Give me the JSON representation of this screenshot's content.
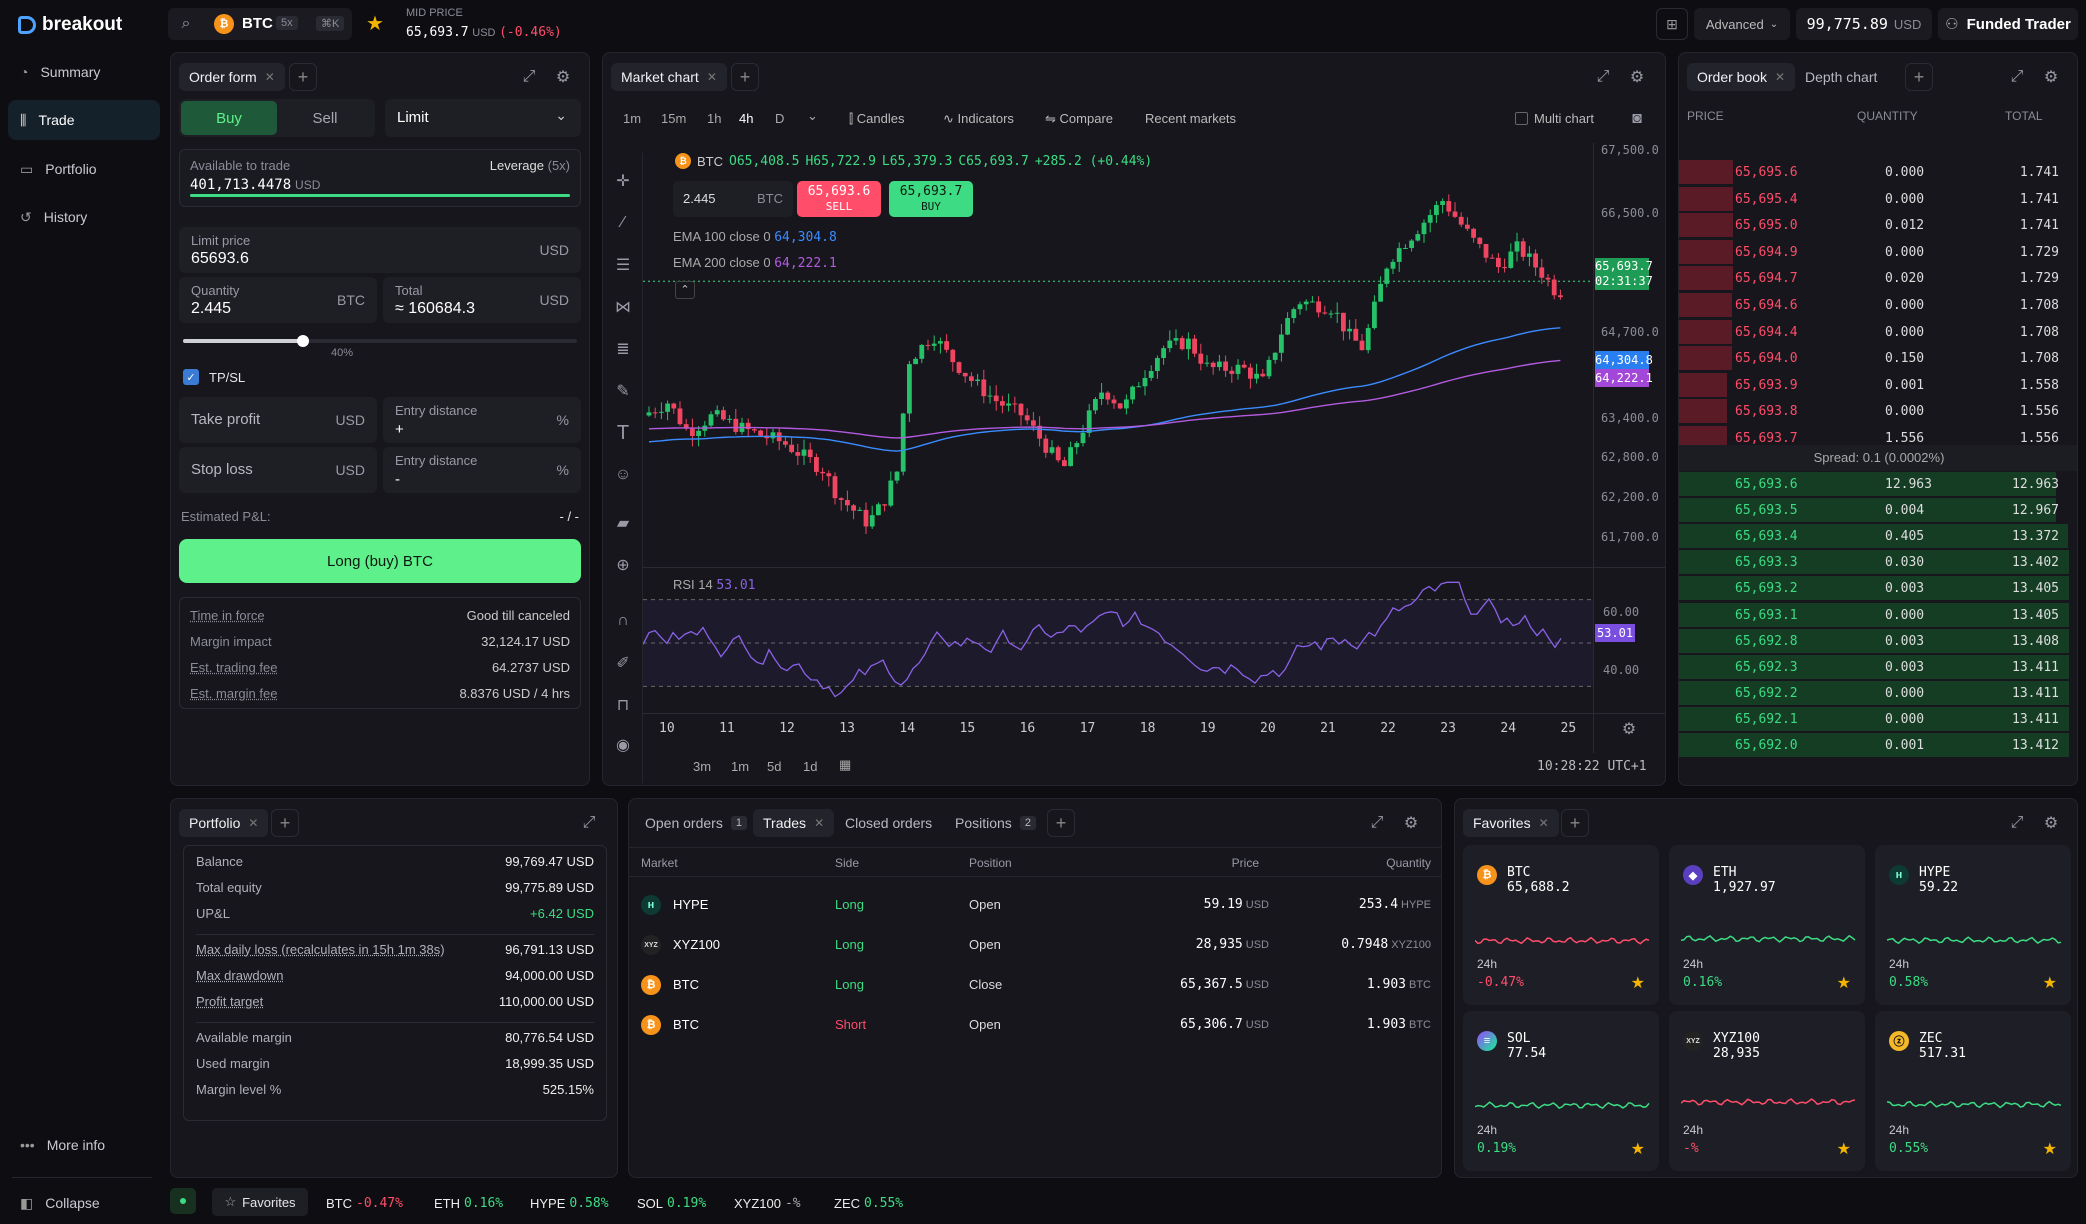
{
  "brand": {
    "name": "breakout"
  },
  "sidebar": {
    "items": [
      {
        "label": "Summary",
        "icon": "chart-pie-icon"
      },
      {
        "label": "Trade",
        "icon": "candles-icon"
      },
      {
        "label": "Portfolio",
        "icon": "wallet-icon"
      },
      {
        "label": "History",
        "icon": "history-icon"
      }
    ],
    "more": "More info",
    "collapse": "Collapse"
  },
  "topbar": {
    "symbol": "BTC",
    "leverage": "5x",
    "shortcut": "⌘K",
    "mid_label": "MID PRICE",
    "mid_price": "65,693.7",
    "mid_unit": "USD",
    "mid_change": "(-0.46%)",
    "mode": "Advanced",
    "balance": "99,775.89",
    "balance_unit": "USD",
    "account": "Funded Trader"
  },
  "order_form": {
    "tab": "Order form",
    "buy": "Buy",
    "sell": "Sell",
    "type": "Limit",
    "available_label": "Available to trade",
    "available_value": "401,713.4478",
    "available_unit": "USD",
    "leverage_label": "Leverage",
    "leverage_value": "(5x)",
    "limit_label": "Limit price",
    "limit_value": "65693.6",
    "usd": "USD",
    "btc": "BTC",
    "qty_label": "Quantity",
    "qty_value": "2.445",
    "total_label": "Total",
    "total_value": "≈ 160684.3",
    "slider_pct": "40%",
    "slider_fraction": 0.4,
    "tpsl": "TP/SL",
    "tp_label": "Take profit",
    "sl_label": "Stop loss",
    "entry_label": "Entry distance",
    "pct": "%",
    "tp_entry": "+",
    "sl_entry": "-",
    "pnl_label": "Estimated P&L:",
    "pnl_value": "- / -",
    "submit": "Long (buy) BTC",
    "details": [
      {
        "k": "Time in force",
        "v": "Good till canceled"
      },
      {
        "k": "Margin impact",
        "v": "32,124.17 USD"
      },
      {
        "k": "Est. trading fee",
        "v": "64.2737 USD"
      },
      {
        "k": "Est. margin fee",
        "v": "8.8376 USD / 4 hrs"
      }
    ]
  },
  "chart": {
    "tab": "Market chart",
    "intervals": [
      "1m",
      "15m",
      "1h",
      "4h",
      "D"
    ],
    "active_interval": "4h",
    "tools": [
      "Candles",
      "Indicators",
      "Compare",
      "Recent markets"
    ],
    "multi": "Multi chart",
    "ohlc_symbol": "BTC",
    "o": "O65,408.5",
    "h": "H65,722.9",
    "l": "L65,379.3",
    "c": "C65,693.7",
    "change": "+285.2 (+0.44%)",
    "qty": "2.445",
    "qty_unit": "BTC",
    "sell_price": "65,693.6",
    "sell_label": "SELL",
    "buy_price": "65,693.7",
    "buy_label": "BUY",
    "ema100_label": "EMA 100 close 0",
    "ema100_value": "64,304.8",
    "ema200_label": "EMA 200 close 0",
    "ema200_value": "64,222.1",
    "rsi_label": "RSI 14",
    "rsi_value": "53.01",
    "price_tag": "65,693.7",
    "price_timer": "02:31:37",
    "y_labels": [
      "67,500.0",
      "66,500.0",
      "64,700.0",
      "63,400.0",
      "62,800.0",
      "62,200.0",
      "61,700.0"
    ],
    "rsi_levels": [
      "60.00",
      "40.00"
    ],
    "x_labels": [
      "10",
      "11",
      "12",
      "13",
      "14",
      "15",
      "16",
      "17",
      "18",
      "19",
      "20",
      "21",
      "22",
      "23",
      "24",
      "25"
    ],
    "ranges": [
      "3m",
      "1m",
      "5d",
      "1d"
    ],
    "clock": "10:28:22 UTC+1"
  },
  "chart_data": {
    "type": "candlestick",
    "title": "BTC",
    "interval": "4h",
    "ylim": [
      61300,
      67600
    ],
    "last_close": 65693.7,
    "ema100": 64304.8,
    "ema200": 64222.1,
    "rsi": 53.01
  },
  "orderbook": {
    "tab": "Order book",
    "tab2": "Depth chart",
    "headers": [
      "PRICE",
      "QUANTITY",
      "TOTAL"
    ],
    "asks": [
      [
        "65,695.6",
        "0.000",
        "1.741"
      ],
      [
        "65,695.4",
        "0.000",
        "1.741"
      ],
      [
        "65,695.0",
        "0.012",
        "1.741"
      ],
      [
        "65,694.9",
        "0.000",
        "1.729"
      ],
      [
        "65,694.7",
        "0.020",
        "1.729"
      ],
      [
        "65,694.6",
        "0.000",
        "1.708"
      ],
      [
        "65,694.4",
        "0.000",
        "1.708"
      ],
      [
        "65,694.0",
        "0.150",
        "1.708"
      ],
      [
        "65,693.9",
        "0.001",
        "1.558"
      ],
      [
        "65,693.8",
        "0.000",
        "1.556"
      ],
      [
        "65,693.7",
        "1.556",
        "1.556"
      ]
    ],
    "spread": "Spread: 0.1 (0.0002%)",
    "bids": [
      [
        "65,693.6",
        "12.963",
        "12.963"
      ],
      [
        "65,693.5",
        "0.004",
        "12.967"
      ],
      [
        "65,693.4",
        "0.405",
        "13.372"
      ],
      [
        "65,693.3",
        "0.030",
        "13.402"
      ],
      [
        "65,693.2",
        "0.003",
        "13.405"
      ],
      [
        "65,693.1",
        "0.000",
        "13.405"
      ],
      [
        "65,692.8",
        "0.003",
        "13.408"
      ],
      [
        "65,692.3",
        "0.003",
        "13.411"
      ],
      [
        "65,692.2",
        "0.000",
        "13.411"
      ],
      [
        "65,692.1",
        "0.000",
        "13.411"
      ],
      [
        "65,692.0",
        "0.001",
        "13.412"
      ]
    ]
  },
  "portfolio": {
    "tab": "Portfolio",
    "rows": [
      {
        "k": "Balance",
        "v": "99,769.47 USD"
      },
      {
        "k": "Total equity",
        "v": "99,775.89 USD"
      },
      {
        "k": "UP&L",
        "v": "+6.42 USD"
      },
      {
        "k": "Max daily loss (recalculates in 15h 1m 38s)",
        "v": "96,791.13 USD"
      },
      {
        "k": "Max drawdown",
        "v": "94,000.00 USD"
      },
      {
        "k": "Profit target",
        "v": "110,000.00 USD"
      },
      {
        "k": "Available margin",
        "v": "80,776.54 USD"
      },
      {
        "k": "Used margin",
        "v": "18,999.35 USD"
      },
      {
        "k": "Margin level %",
        "v": "525.15%"
      }
    ]
  },
  "trades": {
    "tabs": [
      {
        "label": "Open orders",
        "count": "1"
      },
      {
        "label": "Trades"
      },
      {
        "label": "Closed orders"
      },
      {
        "label": "Positions",
        "count": "2"
      }
    ],
    "headers": [
      "Market",
      "Side",
      "Position",
      "Price",
      "Quantity"
    ],
    "rows": [
      {
        "market": "HYPE",
        "side": "Long",
        "position": "Open",
        "price": "59.19",
        "qty": "253.4",
        "qty_unit": "HYPE"
      },
      {
        "market": "XYZ100",
        "side": "Long",
        "position": "Open",
        "price": "28,935",
        "qty": "0.7948",
        "qty_unit": "XYZ100"
      },
      {
        "market": "BTC",
        "side": "Long",
        "position": "Close",
        "price": "65,367.5",
        "qty": "1.903",
        "qty_unit": "BTC"
      },
      {
        "market": "BTC",
        "side": "Short",
        "position": "Open",
        "price": "65,306.7",
        "qty": "1.903",
        "qty_unit": "BTC"
      }
    ],
    "usd": "USD"
  },
  "favorites": {
    "tab": "Favorites",
    "label24": "24h",
    "items": [
      {
        "sym": "BTC",
        "price": "65,688.2",
        "chg": "-0.47%"
      },
      {
        "sym": "ETH",
        "price": "1,927.97",
        "chg": "0.16%"
      },
      {
        "sym": "HYPE",
        "price": "59.22",
        "chg": "0.58%"
      },
      {
        "sym": "SOL",
        "price": "77.54",
        "chg": "0.19%"
      },
      {
        "sym": "XYZ100",
        "price": "28,935",
        "chg": "-%"
      },
      {
        "sym": "ZEC",
        "price": "517.31",
        "chg": "0.55%"
      }
    ]
  },
  "ticker": {
    "label": "Favorites",
    "items": [
      {
        "sym": "BTC",
        "chg": "-0.47%"
      },
      {
        "sym": "ETH",
        "chg": "0.16%"
      },
      {
        "sym": "HYPE",
        "chg": "0.58%"
      },
      {
        "sym": "SOL",
        "chg": "0.19%"
      },
      {
        "sym": "XYZ100",
        "chg": "-%"
      },
      {
        "sym": "ZEC",
        "chg": "0.55%"
      }
    ]
  }
}
